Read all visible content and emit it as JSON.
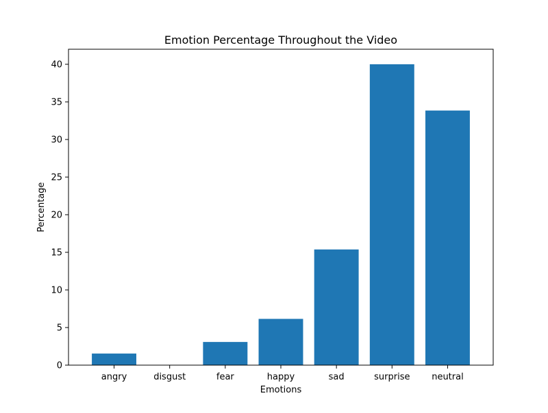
{
  "chart_data": {
    "type": "bar",
    "title": "Emotion Percentage Throughout the Video",
    "xlabel": "Emotions",
    "ylabel": "Percentage",
    "categories": [
      "angry",
      "disgust",
      "fear",
      "happy",
      "sad",
      "surprise",
      "neutral"
    ],
    "values": [
      1.54,
      0.0,
      3.08,
      6.15,
      15.38,
      40.0,
      33.85
    ],
    "ylim": [
      0,
      42
    ],
    "yticks": [
      0,
      5,
      10,
      15,
      20,
      25,
      30,
      35,
      40
    ],
    "grid": false,
    "legend": "none",
    "bar_color": "#1f77b4"
  }
}
